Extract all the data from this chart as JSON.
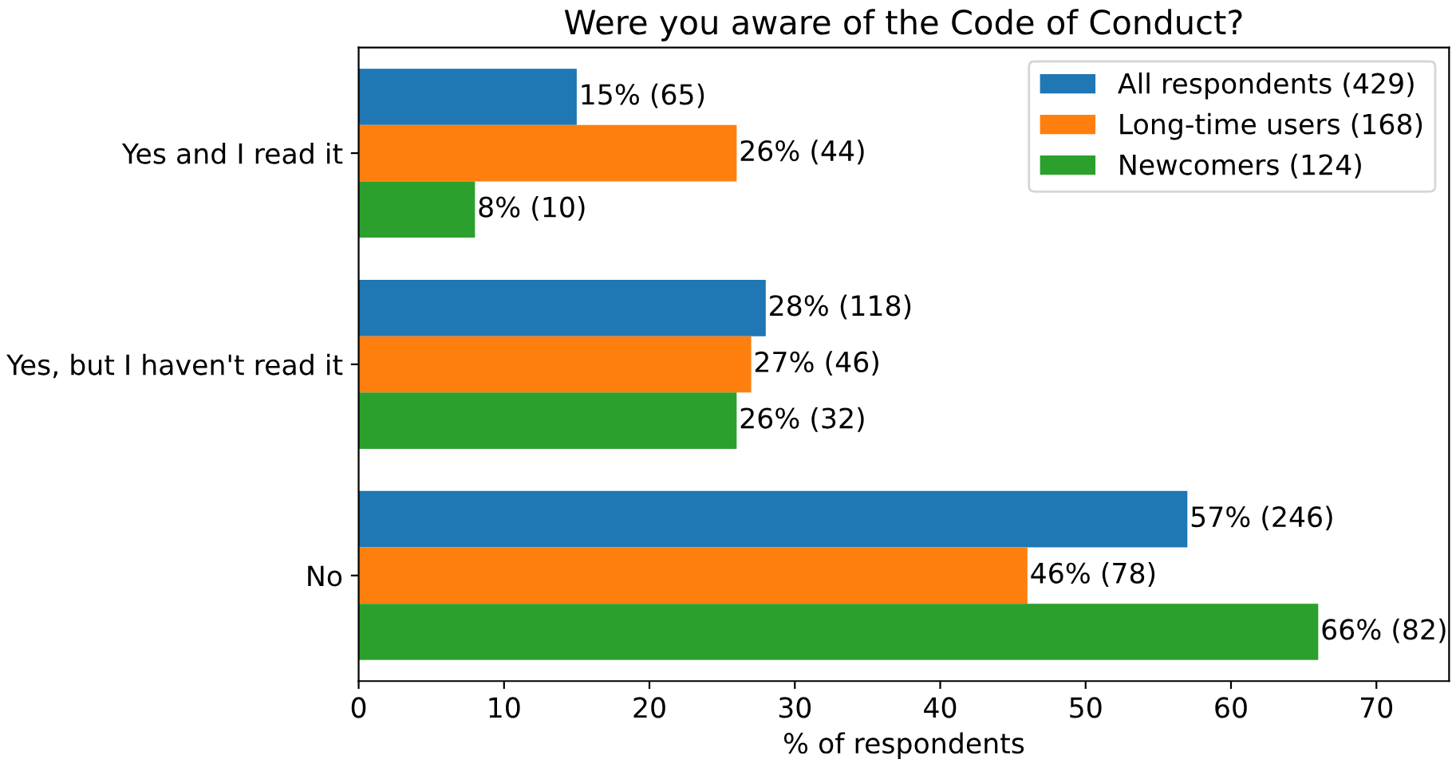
{
  "chart_data": {
    "type": "bar",
    "orientation": "horizontal",
    "title": "Were you aware of the Code of Conduct?",
    "xlabel": "% of respondents",
    "categories": [
      "Yes and I read it",
      "Yes, but I haven't read it",
      "No"
    ],
    "series": [
      {
        "name": "All respondents (429)",
        "color": "#1f77b4",
        "values": [
          15,
          28,
          57
        ],
        "value_labels": [
          "15% (65)",
          "28% (118)",
          "57% (246)"
        ]
      },
      {
        "name": "Long-time users (168)",
        "color": "#ff7f0e",
        "values": [
          26,
          27,
          46
        ],
        "value_labels": [
          "26% (44)",
          "27% (46)",
          "46% (78)"
        ]
      },
      {
        "name": "Newcomers (124)",
        "color": "#2ca02c",
        "values": [
          8,
          26,
          66
        ],
        "value_labels": [
          "8% (10)",
          "26% (32)",
          "66% (82)"
        ]
      }
    ],
    "xlim": [
      0,
      75
    ],
    "xticks": [
      0,
      10,
      20,
      30,
      40,
      50,
      60,
      70
    ],
    "grid": false,
    "legend": "top right"
  }
}
